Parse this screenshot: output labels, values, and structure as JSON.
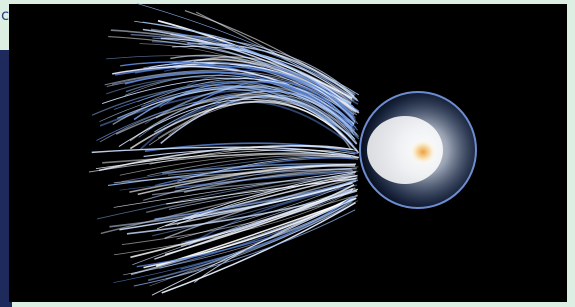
{
  "screen": {
    "fragment_text": "c"
  }
}
